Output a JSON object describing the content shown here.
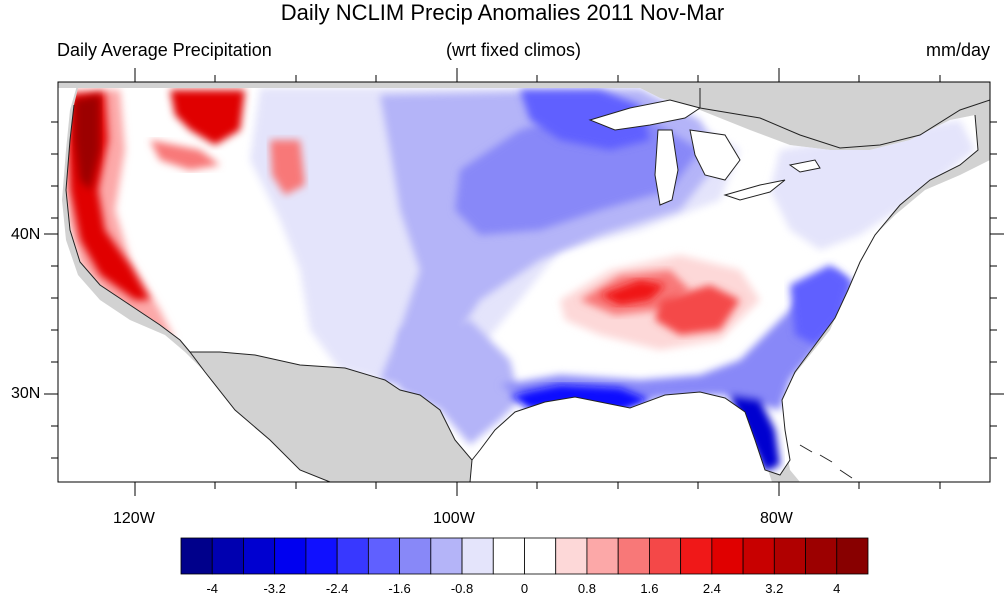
{
  "title": "Daily NCLIM Precip Anomalies 2011 Nov-Mar",
  "subtitle_left": "Daily Average Precipitation",
  "subtitle_center": "(wrt fixed climos)",
  "subtitle_right": "mm/day",
  "lat_labels": [
    "40N",
    "30N"
  ],
  "lon_labels": [
    "120W",
    "100W",
    "80W"
  ],
  "colorbar": {
    "labels": [
      "-4",
      "-3.2",
      "-2.4",
      "-1.6",
      "-0.8",
      "0",
      "0.8",
      "1.6",
      "2.4",
      "3.2",
      "4"
    ],
    "colors": [
      "#00008b",
      "#0000b0",
      "#0000d0",
      "#0000f0",
      "#1010ff",
      "#3838ff",
      "#6060ff",
      "#8888f8",
      "#b4b4f8",
      "#e4e4fb",
      "#ffffff",
      "#ffffff",
      "#fdd8d8",
      "#fca8a8",
      "#f87878",
      "#f44848",
      "#f01818",
      "#e00000",
      "#c80000",
      "#b00000",
      "#9c0000",
      "#880000"
    ]
  },
  "map": {
    "lon_range": [
      -125,
      -67
    ],
    "lat_range": [
      24.5,
      49.5
    ],
    "colors": {
      "land_nodata": "#d2d2d2",
      "water": "#ffffff",
      "outline": "#222222"
    }
  }
}
